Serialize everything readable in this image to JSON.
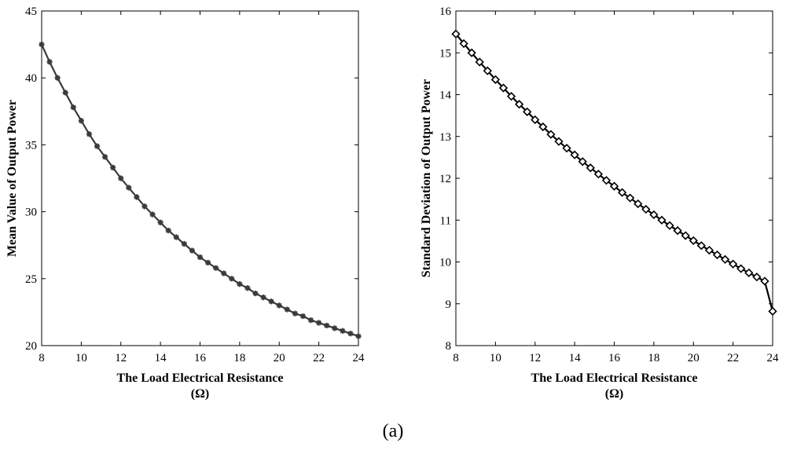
{
  "chart_data": [
    {
      "type": "line",
      "xlabel_lines": [
        "The Load Electrical Resistance",
        "(Ω)"
      ],
      "ylabel": "Mean Value of Output Power",
      "xlim": [
        8,
        24
      ],
      "ylim": [
        20,
        45
      ],
      "xticks": [
        8,
        10,
        12,
        14,
        16,
        18,
        20,
        22,
        24
      ],
      "yticks": [
        20,
        25,
        30,
        35,
        40,
        45
      ],
      "grid": false,
      "marker": "asterisk",
      "color": "#3a3a3a",
      "series": [
        {
          "x": [
            8.0,
            8.4,
            8.8,
            9.2,
            9.6,
            10.0,
            10.4,
            10.8,
            11.2,
            11.6,
            12.0,
            12.4,
            12.8,
            13.2,
            13.6,
            14.0,
            14.4,
            14.8,
            15.2,
            15.6,
            16.0,
            16.4,
            16.8,
            17.2,
            17.6,
            18.0,
            18.4,
            18.8,
            19.2,
            19.6,
            20.0,
            20.4,
            20.8,
            21.2,
            21.6,
            22.0,
            22.4,
            22.8,
            23.2,
            23.6,
            24.0
          ],
          "y": [
            42.5,
            41.2,
            40.0,
            38.9,
            37.8,
            36.8,
            35.8,
            34.9,
            34.1,
            33.3,
            32.5,
            31.8,
            31.1,
            30.4,
            29.8,
            29.2,
            28.6,
            28.1,
            27.6,
            27.1,
            26.6,
            26.2,
            25.8,
            25.4,
            25.0,
            24.6,
            24.3,
            23.9,
            23.6,
            23.3,
            23.0,
            22.7,
            22.4,
            22.2,
            21.9,
            21.7,
            21.5,
            21.3,
            21.1,
            20.9,
            20.7
          ]
        }
      ]
    },
    {
      "type": "line",
      "xlabel_lines": [
        "The Load Electrical Resistance",
        "(Ω)"
      ],
      "ylabel": "Standard Deviation of Output Power",
      "xlim": [
        8,
        24
      ],
      "ylim": [
        8,
        16
      ],
      "xticks": [
        8,
        10,
        12,
        14,
        16,
        18,
        20,
        22,
        24
      ],
      "yticks": [
        8,
        9,
        10,
        11,
        12,
        13,
        14,
        15,
        16
      ],
      "grid": false,
      "marker": "diamond",
      "color": "#000000",
      "series": [
        {
          "x": [
            8.0,
            8.4,
            8.8,
            9.2,
            9.6,
            10.0,
            10.4,
            10.8,
            11.2,
            11.6,
            12.0,
            12.4,
            12.8,
            13.2,
            13.6,
            14.0,
            14.4,
            14.8,
            15.2,
            15.6,
            16.0,
            16.4,
            16.8,
            17.2,
            17.6,
            18.0,
            18.4,
            18.8,
            19.2,
            19.6,
            20.0,
            20.4,
            20.8,
            21.2,
            21.6,
            22.0,
            22.4,
            22.8,
            23.2,
            23.6,
            24.0
          ],
          "y": [
            15.45,
            15.22,
            15.0,
            14.78,
            14.57,
            14.36,
            14.16,
            13.96,
            13.77,
            13.59,
            13.4,
            13.23,
            13.05,
            12.88,
            12.72,
            12.56,
            12.4,
            12.25,
            12.1,
            11.95,
            11.81,
            11.66,
            11.53,
            11.39,
            11.26,
            11.13,
            11.0,
            10.87,
            10.75,
            10.63,
            10.51,
            10.39,
            10.28,
            10.17,
            10.06,
            9.95,
            9.84,
            9.74,
            9.64,
            9.54,
            8.82
          ]
        }
      ]
    }
  ],
  "caption": "(a)"
}
